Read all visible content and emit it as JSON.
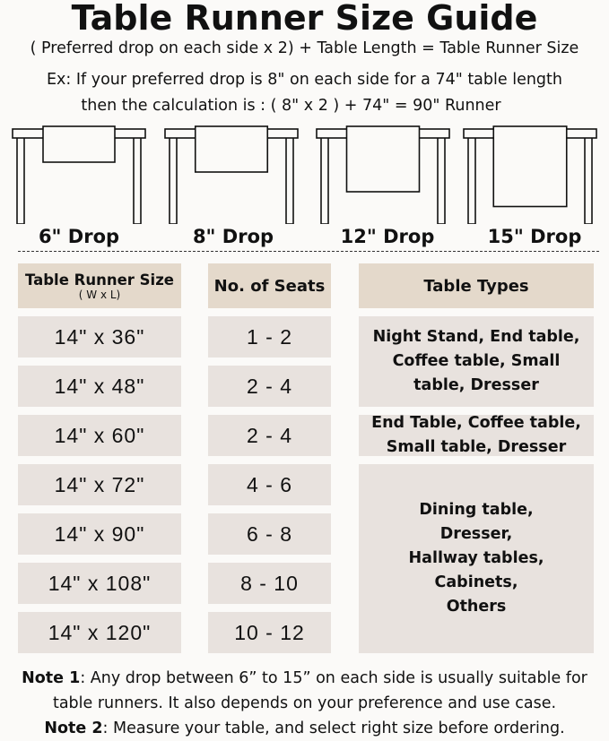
{
  "title": "Table Runner Size Guide",
  "formula": "( Preferred drop on each side x 2) + Table Length = Table Runner Size",
  "example_line1": "Ex: If your preferred drop is 8\" on each side for a 74\" table length",
  "example_line2": "then the calculation is : ( 8\" x 2 ) + 74\" = 90\" Runner",
  "drops": [
    {
      "label": "6\" Drop",
      "inches": 6
    },
    {
      "label": "8\" Drop",
      "inches": 8
    },
    {
      "label": "12\" Drop",
      "inches": 12
    },
    {
      "label": "15\" Drop",
      "inches": 15
    }
  ],
  "table": {
    "headers": {
      "size": "Table Runner Size",
      "size_sub": "( W x L)",
      "seats": "No. of Seats",
      "types": "Table Types"
    },
    "rows": [
      {
        "size": "14\" x 36\"",
        "seats": "1 - 2"
      },
      {
        "size": "14\" x 48\"",
        "seats": "2 - 4"
      },
      {
        "size": "14\" x 60\"",
        "seats": "2 - 4"
      },
      {
        "size": "14\" x 72\"",
        "seats": "4 - 6"
      },
      {
        "size": "14\" x 90\"",
        "seats": "6 - 8"
      },
      {
        "size": "14\" x 108\"",
        "seats": "8 - 10"
      },
      {
        "size": "14\" x 120\"",
        "seats": "10 - 12"
      }
    ],
    "types": [
      "Night Stand, End table, Coffee table, Small table, Dresser",
      "End Table, Coffee table, Small table, Dresser",
      "Dining table, Dresser, Hallway tables, Cabinets, Others"
    ]
  },
  "notes": [
    {
      "label": "Note 1",
      "text": ": Any drop between 6” to 15” on each side is usually suitable for table runners. It also depends on your preference and use case."
    },
    {
      "label": "Note 2",
      "text": ": Measure your table, and select right size before ordering."
    }
  ],
  "colors": {
    "header_bg": "#e4d9cb",
    "cell_bg": "#e8e2de",
    "page_bg": "#fbfaf8"
  }
}
